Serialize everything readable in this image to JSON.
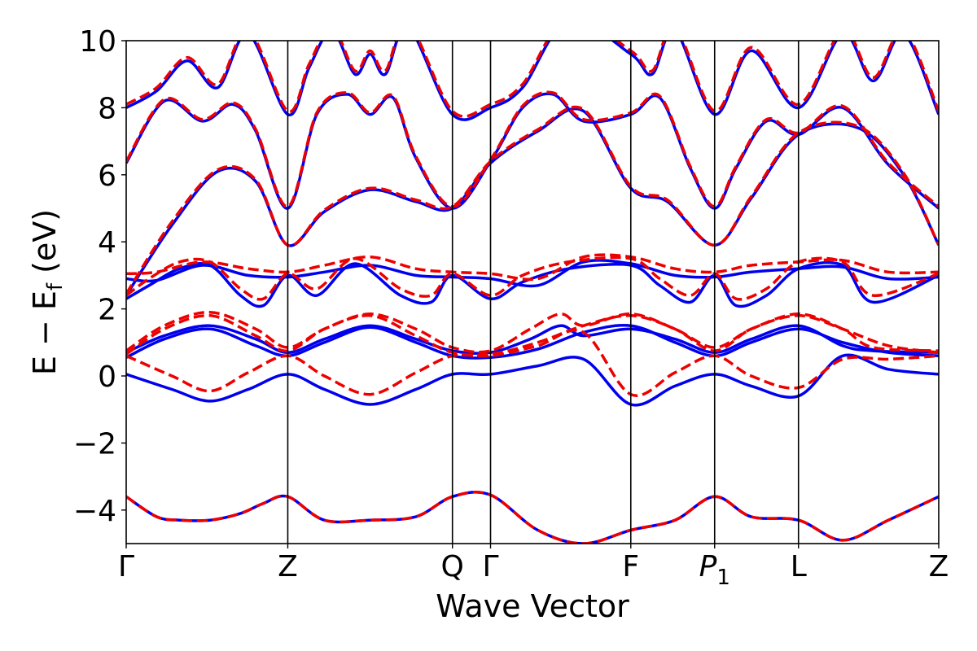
{
  "chart_data": {
    "type": "line",
    "title": "",
    "xlabel": "Wave Vector",
    "ylabel_parts": {
      "main": "E − E",
      "sub": "f",
      "unit": " (eV)"
    },
    "ylim": [
      -5,
      10
    ],
    "yticks": [
      10,
      8,
      6,
      4,
      2,
      0,
      -2,
      -4
    ],
    "ytick_labels": [
      "10",
      "8",
      "6",
      "4",
      "2",
      "0",
      "−2",
      "−4"
    ],
    "xlim": [
      0,
      5.33
    ],
    "kpoints": [
      {
        "label": "Γ",
        "x": 0.0
      },
      {
        "label": "Z",
        "x": 1.06
      },
      {
        "label": "Q",
        "x": 2.14
      },
      {
        "label": "Γ",
        "x": 2.39
      },
      {
        "label": "F",
        "x": 3.31
      },
      {
        "label": "P",
        "sub": "1",
        "italic": true,
        "x": 3.86
      },
      {
        "label": "L",
        "x": 4.41
      },
      {
        "label": "Z",
        "x": 5.33
      }
    ],
    "grid": false,
    "series": [
      {
        "style": "solid",
        "color": "#0000ee",
        "bands": [
          {
            "x": [
              0,
              0.2,
              0.35,
              0.55,
              0.75,
              0.9,
              1.06,
              1.3,
              1.6,
              1.9,
              2.14,
              2.39,
              2.7,
              3.0,
              3.31,
              3.6,
              3.86,
              4.1,
              4.41,
              4.7,
              5.0,
              5.33
            ],
            "y": [
              -3.6,
              -4.2,
              -4.3,
              -4.3,
              -4.1,
              -3.8,
              -3.6,
              -4.3,
              -4.3,
              -4.2,
              -3.6,
              -3.55,
              -4.6,
              -5.0,
              -4.6,
              -4.3,
              -3.6,
              -4.2,
              -4.3,
              -4.9,
              -4.3,
              -3.6
            ]
          },
          {
            "x": [
              0,
              0.3,
              0.55,
              0.8,
              1.06,
              1.3,
              1.6,
              1.9,
              2.14,
              2.39,
              2.7,
              3.0,
              3.31,
              3.6,
              3.86,
              4.1,
              4.41,
              4.7,
              5.0,
              5.33
            ],
            "y": [
              0.05,
              -0.4,
              -0.75,
              -0.4,
              0.05,
              -0.4,
              -0.85,
              -0.4,
              0.05,
              0.05,
              0.3,
              0.5,
              -0.85,
              -0.3,
              0.05,
              -0.3,
              -0.6,
              0.6,
              0.2,
              0.05
            ]
          },
          {
            "x": [
              0,
              0.25,
              0.55,
              0.85,
              1.06,
              1.3,
              1.6,
              1.9,
              2.14,
              2.39,
              2.7,
              3.0,
              3.31,
              3.6,
              3.86,
              4.1,
              4.41,
              4.7,
              5.0,
              5.33
            ],
            "y": [
              0.55,
              1.1,
              1.4,
              0.9,
              0.6,
              1.0,
              1.45,
              1.0,
              0.6,
              0.55,
              0.8,
              1.3,
              1.5,
              1.0,
              0.6,
              1.0,
              1.4,
              1.0,
              0.7,
              0.6
            ]
          },
          {
            "x": [
              0,
              0.25,
              0.55,
              0.85,
              1.06,
              1.3,
              1.6,
              1.9,
              2.14,
              2.39,
              2.65,
              2.85,
              3.0,
              3.31,
              3.6,
              3.86,
              4.1,
              4.41,
              4.7,
              4.9,
              5.33
            ],
            "y": [
              0.7,
              1.2,
              1.5,
              1.1,
              0.7,
              1.1,
              1.5,
              1.1,
              0.75,
              0.7,
              1.1,
              1.5,
              1.2,
              1.4,
              1.1,
              0.7,
              1.1,
              1.5,
              0.9,
              0.75,
              0.7
            ]
          },
          {
            "x": [
              0,
              0.15,
              0.35,
              0.55,
              0.75,
              0.9,
              1.06,
              1.25,
              1.5,
              1.8,
              2.0,
              2.14,
              2.39,
              2.6,
              2.9,
              3.31,
              3.5,
              3.7,
              3.86,
              4.0,
              4.2,
              4.41,
              4.7,
              4.9,
              5.33
            ],
            "y": [
              2.3,
              2.7,
              3.2,
              3.3,
              2.4,
              2.1,
              3.0,
              2.4,
              3.35,
              2.4,
              2.2,
              3.0,
              2.3,
              2.8,
              3.2,
              3.3,
              2.7,
              2.2,
              3.0,
              2.1,
              2.4,
              3.2,
              3.3,
              2.2,
              3.0
            ]
          },
          {
            "x": [
              0,
              0.2,
              0.5,
              0.8,
              1.06,
              1.3,
              1.6,
              1.9,
              2.14,
              2.39,
              2.7,
              3.0,
              3.31,
              3.6,
              3.86,
              4.1,
              4.41,
              4.7,
              5.0,
              5.33
            ],
            "y": [
              2.9,
              2.85,
              3.3,
              3.0,
              2.95,
              3.1,
              3.3,
              3.0,
              2.95,
              2.9,
              2.7,
              3.4,
              3.35,
              3.0,
              2.95,
              3.1,
              3.2,
              3.25,
              2.9,
              2.95
            ]
          },
          {
            "x": [
              0,
              0.3,
              0.6,
              0.85,
              1.06,
              1.3,
              1.6,
              1.9,
              2.14,
              2.39,
              2.7,
              3.0,
              3.31,
              3.55,
              3.86,
              4.1,
              4.41,
              4.8,
              5.1,
              5.33
            ],
            "y": [
              2.4,
              4.5,
              6.1,
              5.8,
              3.9,
              4.9,
              5.55,
              5.2,
              5.0,
              6.35,
              7.3,
              7.9,
              5.6,
              5.2,
              3.9,
              5.3,
              7.2,
              7.4,
              6.0,
              3.9
            ]
          },
          {
            "x": [
              0,
              0.25,
              0.5,
              0.7,
              0.85,
              1.06,
              1.25,
              1.45,
              1.6,
              1.75,
              1.9,
              2.14,
              2.39,
              2.6,
              2.8,
              3.0,
              3.31,
              3.5,
              3.7,
              3.86,
              4.0,
              4.2,
              4.41,
              4.7,
              5.0,
              5.33
            ],
            "y": [
              6.35,
              8.2,
              7.6,
              8.1,
              7.3,
              5.0,
              7.8,
              8.4,
              7.8,
              8.3,
              6.5,
              5.0,
              6.4,
              8.0,
              8.4,
              7.6,
              7.8,
              8.3,
              6.2,
              5.0,
              6.2,
              7.6,
              7.2,
              8.0,
              6.3,
              5.0
            ]
          },
          {
            "x": [
              0,
              0.2,
              0.4,
              0.6,
              0.8,
              1.06,
              1.2,
              1.35,
              1.5,
              1.6,
              1.7,
              1.85,
              2.14,
              2.39,
              2.6,
              2.9,
              3.31,
              3.45,
              3.6,
              3.86,
              4.1,
              4.41,
              4.7,
              4.9,
              5.1,
              5.33
            ],
            "y": [
              8.0,
              8.5,
              9.4,
              8.6,
              10.2,
              7.8,
              9.2,
              10.3,
              9.0,
              9.6,
              9.0,
              10.4,
              7.8,
              8.0,
              8.6,
              10.6,
              9.6,
              9.0,
              10.3,
              7.8,
              9.7,
              8.0,
              10.2,
              8.8,
              10.2,
              7.8
            ]
          }
        ]
      },
      {
        "style": "dashed",
        "color": "#ee0000",
        "bands": [
          {
            "x": [
              0,
              0.2,
              0.35,
              0.55,
              0.75,
              0.9,
              1.06,
              1.3,
              1.6,
              1.9,
              2.14,
              2.39,
              2.7,
              3.0,
              3.31,
              3.6,
              3.86,
              4.1,
              4.41,
              4.7,
              5.0,
              5.33
            ],
            "y": [
              -3.6,
              -4.2,
              -4.3,
              -4.3,
              -4.1,
              -3.8,
              -3.6,
              -4.3,
              -4.3,
              -4.2,
              -3.6,
              -3.55,
              -4.6,
              -5.0,
              -4.6,
              -4.3,
              -3.6,
              -4.2,
              -4.3,
              -4.9,
              -4.3,
              -3.6
            ]
          },
          {
            "x": [
              0,
              0.3,
              0.55,
              0.8,
              1.06,
              1.3,
              1.6,
              1.9,
              2.14,
              2.39,
              2.7,
              3.0,
              3.31,
              3.6,
              3.86,
              4.1,
              4.41,
              4.7,
              5.0,
              5.33
            ],
            "y": [
              0.6,
              0.0,
              -0.45,
              0.1,
              0.6,
              0.0,
              -0.55,
              0.1,
              0.6,
              0.6,
              0.9,
              1.3,
              -0.55,
              0.1,
              0.6,
              0.0,
              -0.35,
              0.5,
              0.5,
              0.6
            ]
          },
          {
            "x": [
              0,
              0.25,
              0.55,
              0.85,
              1.06,
              1.3,
              1.6,
              1.9,
              2.14,
              2.39,
              2.7,
              3.0,
              3.31,
              3.6,
              3.86,
              4.1,
              4.41,
              4.7,
              5.0,
              5.33
            ],
            "y": [
              0.65,
              1.4,
              1.8,
              1.2,
              0.75,
              1.4,
              1.8,
              1.2,
              0.7,
              0.65,
              1.0,
              1.5,
              1.8,
              1.4,
              0.75,
              1.4,
              1.8,
              1.4,
              0.9,
              0.7
            ]
          },
          {
            "x": [
              0,
              0.25,
              0.55,
              0.85,
              1.06,
              1.3,
              1.6,
              1.9,
              2.14,
              2.39,
              2.65,
              2.85,
              3.0,
              3.31,
              3.6,
              3.86,
              4.1,
              4.41,
              4.7,
              4.9,
              5.33
            ],
            "y": [
              0.75,
              1.5,
              1.9,
              1.4,
              0.85,
              1.4,
              1.85,
              1.4,
              0.85,
              0.75,
              1.4,
              1.85,
              1.5,
              1.85,
              1.4,
              0.85,
              1.4,
              1.85,
              1.4,
              0.85,
              0.75
            ]
          },
          {
            "x": [
              0,
              0.15,
              0.35,
              0.55,
              0.75,
              0.9,
              1.06,
              1.25,
              1.5,
              1.8,
              2.0,
              2.14,
              2.39,
              2.6,
              2.9,
              3.31,
              3.5,
              3.7,
              3.86,
              4.0,
              4.2,
              4.41,
              4.7,
              4.9,
              5.33
            ],
            "y": [
              2.4,
              2.9,
              3.4,
              3.4,
              2.6,
              2.3,
              3.05,
              2.6,
              3.5,
              2.6,
              2.4,
              3.05,
              2.4,
              3.0,
              3.4,
              3.5,
              2.9,
              2.4,
              3.05,
              2.3,
              2.6,
              3.4,
              3.4,
              2.4,
              3.05
            ]
          },
          {
            "x": [
              0,
              0.2,
              0.5,
              0.8,
              1.06,
              1.3,
              1.6,
              1.9,
              2.14,
              2.39,
              2.7,
              3.0,
              3.31,
              3.6,
              3.86,
              4.1,
              4.41,
              4.7,
              5.0,
              5.33
            ],
            "y": [
              3.05,
              3.1,
              3.4,
              3.2,
              3.1,
              3.3,
              3.55,
              3.2,
              3.1,
              3.05,
              2.9,
              3.55,
              3.55,
              3.2,
              3.1,
              3.3,
              3.4,
              3.45,
              3.1,
              3.1
            ]
          },
          {
            "x": [
              0,
              0.3,
              0.6,
              0.85,
              1.06,
              1.3,
              1.6,
              1.9,
              2.14,
              2.39,
              2.7,
              3.0,
              3.31,
              3.55,
              3.86,
              4.1,
              4.41,
              4.8,
              5.1,
              5.33
            ],
            "y": [
              2.45,
              4.6,
              6.15,
              5.85,
              3.9,
              4.95,
              5.6,
              5.25,
              5.05,
              6.4,
              7.35,
              7.95,
              5.65,
              5.25,
              3.9,
              5.35,
              7.25,
              7.45,
              6.05,
              3.9
            ]
          },
          {
            "x": [
              0,
              0.25,
              0.5,
              0.7,
              0.85,
              1.06,
              1.25,
              1.45,
              1.6,
              1.75,
              1.9,
              2.14,
              2.39,
              2.6,
              2.8,
              3.0,
              3.31,
              3.5,
              3.7,
              3.86,
              4.0,
              4.2,
              4.41,
              4.7,
              5.0,
              5.33
            ],
            "y": [
              6.4,
              8.25,
              7.65,
              8.15,
              7.35,
              5.05,
              7.85,
              8.45,
              7.85,
              8.35,
              6.55,
              5.05,
              6.45,
              8.05,
              8.45,
              7.65,
              7.85,
              8.35,
              6.25,
              5.05,
              6.25,
              7.65,
              7.25,
              8.05,
              6.35,
              5.05
            ]
          },
          {
            "x": [
              0,
              0.2,
              0.4,
              0.6,
              0.8,
              1.06,
              1.2,
              1.35,
              1.5,
              1.6,
              1.7,
              1.85,
              2.14,
              2.39,
              2.6,
              2.9,
              3.31,
              3.45,
              3.6,
              3.86,
              4.1,
              4.41,
              4.7,
              4.9,
              5.1,
              5.33
            ],
            "y": [
              8.1,
              8.6,
              9.5,
              8.7,
              10.3,
              7.9,
              9.3,
              10.4,
              9.1,
              9.7,
              9.1,
              10.5,
              7.9,
              8.1,
              8.7,
              10.7,
              9.7,
              9.1,
              10.4,
              7.9,
              9.8,
              8.1,
              10.3,
              8.9,
              10.3,
              7.9
            ]
          }
        ]
      }
    ]
  }
}
